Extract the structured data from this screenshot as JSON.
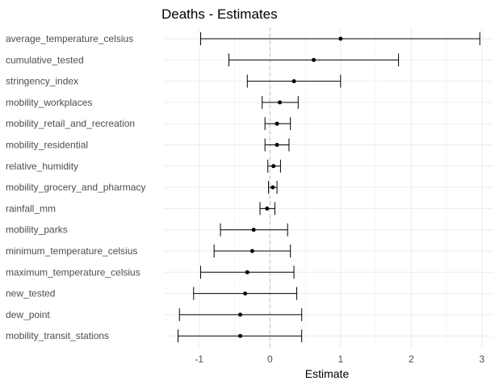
{
  "chart_data": {
    "type": "scatter",
    "subtype": "coefficient-plot",
    "title": "Deaths - Estimates",
    "xlabel": "Estimate",
    "ylabel": "",
    "xlim": [
      -1.5,
      3.15
    ],
    "xticks": [
      -1,
      0,
      1,
      2,
      3
    ],
    "grid": true,
    "reference_line": {
      "x": 0,
      "style": "dashed"
    },
    "points": [
      {
        "label": "average_temperature_celsius",
        "estimate": 1.0,
        "low": -0.98,
        "high": 2.97
      },
      {
        "label": "cumulative_tested",
        "estimate": 0.62,
        "low": -0.58,
        "high": 1.82
      },
      {
        "label": "stringency_index",
        "estimate": 0.34,
        "low": -0.32,
        "high": 1.0
      },
      {
        "label": "mobility_workplaces",
        "estimate": 0.14,
        "low": -0.11,
        "high": 0.4
      },
      {
        "label": "mobility_retail_and_recreation",
        "estimate": 0.1,
        "low": -0.07,
        "high": 0.29
      },
      {
        "label": "mobility_residential",
        "estimate": 0.1,
        "low": -0.07,
        "high": 0.27
      },
      {
        "label": "relative_humidity",
        "estimate": 0.05,
        "low": -0.03,
        "high": 0.15
      },
      {
        "label": "mobility_grocery_and_pharmacy",
        "estimate": 0.04,
        "low": -0.02,
        "high": 0.1
      },
      {
        "label": "rainfall_mm",
        "estimate": -0.04,
        "low": -0.14,
        "high": 0.07
      },
      {
        "label": "mobility_parks",
        "estimate": -0.23,
        "low": -0.7,
        "high": 0.25
      },
      {
        "label": "minimum_temperature_celsius",
        "estimate": -0.25,
        "low": -0.79,
        "high": 0.29
      },
      {
        "label": "maximum_temperature_celsius",
        "estimate": -0.32,
        "low": -0.98,
        "high": 0.34
      },
      {
        "label": "new_tested",
        "estimate": -0.35,
        "low": -1.08,
        "high": 0.38
      },
      {
        "label": "dew_point",
        "estimate": -0.42,
        "low": -1.28,
        "high": 0.45
      },
      {
        "label": "mobility_transit_stations",
        "estimate": -0.42,
        "low": -1.3,
        "high": 0.45
      }
    ],
    "colors": {
      "background": "#ffffff",
      "grid_major": "#ebebeb",
      "grid_minor": "#f5f5f5",
      "zero_line": "#bebebe",
      "marks": "#000000"
    }
  }
}
